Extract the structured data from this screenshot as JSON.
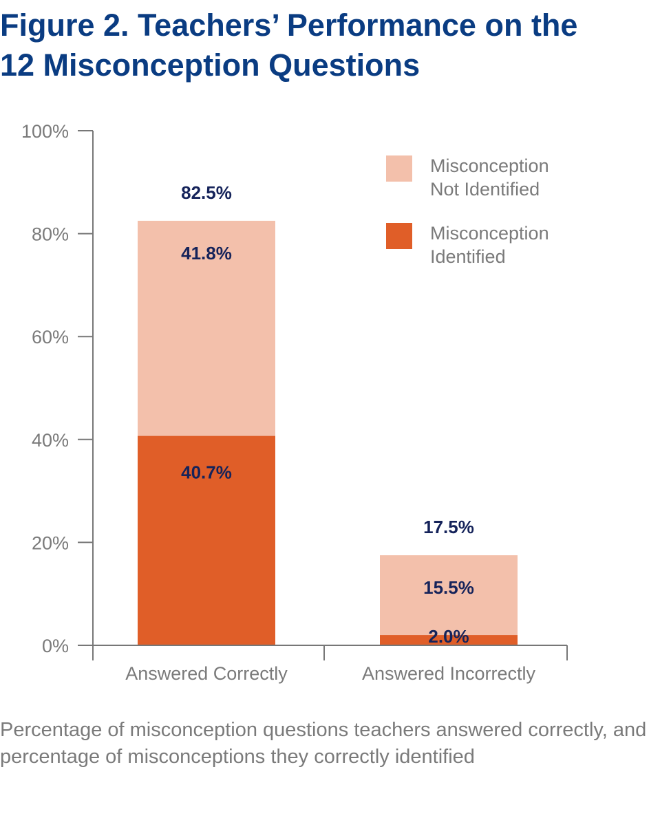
{
  "title_lines": [
    "Figure 2. Teachers’ Performance on the",
    "12 Misconception Questions"
  ],
  "caption": "Percentage of misconception questions teachers answered correctly, and percentage of misconceptions they correctly identified",
  "colors": {
    "title": "#0a3c82",
    "identified": "#e05e28",
    "not_identified": "#f3c0ab",
    "value_label": "#15235a",
    "axis": "#777777",
    "axis_text": "#7a7a7a"
  },
  "chart_data": {
    "type": "bar",
    "stacked": true,
    "categories": [
      "Answered Correctly",
      "Answered Incorrectly"
    ],
    "series": [
      {
        "name": "Misconception Identified",
        "values": [
          40.7,
          2.0
        ],
        "labels": [
          "40.7%",
          "2.0%"
        ]
      },
      {
        "name": "Misconception Not Identified",
        "values": [
          41.8,
          15.5
        ],
        "labels": [
          "41.8%",
          "15.5%"
        ]
      }
    ],
    "totals": [
      82.5,
      17.5
    ],
    "total_labels": [
      "82.5%",
      "17.5%"
    ],
    "yticks": [
      0,
      20,
      40,
      60,
      80,
      100
    ],
    "ytick_labels": [
      "0%",
      "20%",
      "40%",
      "60%",
      "80%",
      "100%"
    ],
    "ylim": [
      0,
      100
    ],
    "legend": [
      {
        "lines": [
          "Misconception",
          "Not Identified"
        ],
        "series": "Misconception Not Identified"
      },
      {
        "lines": [
          "Misconception",
          "Identified"
        ],
        "series": "Misconception Identified"
      }
    ],
    "legend_position": "top-right",
    "grid": false
  }
}
